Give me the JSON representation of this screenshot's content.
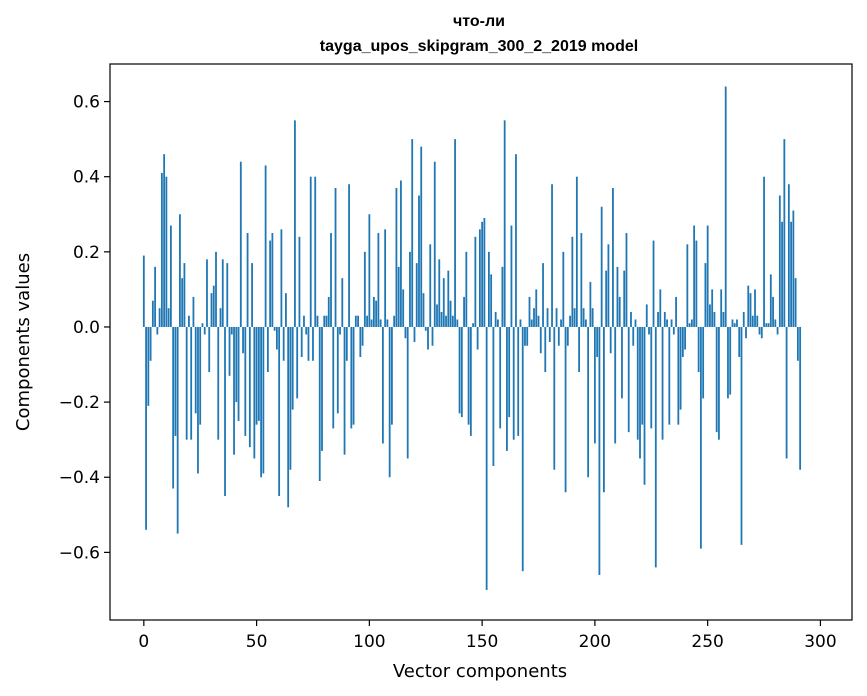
{
  "chart_data": {
    "type": "bar",
    "title_lines": [
      "что-ли",
      "tayga_upos_skipgram_300_2_2019 model"
    ],
    "xlabel": "Vector components",
    "ylabel": "Components values",
    "xlim": [
      -15,
      314
    ],
    "ylim": [
      -0.78,
      0.7
    ],
    "xticks": [
      0,
      50,
      100,
      150,
      200,
      250,
      300
    ],
    "yticks": [
      -0.6,
      -0.4,
      -0.2,
      0.0,
      0.2,
      0.4,
      0.6
    ],
    "ytick_labels": [
      "−0.6",
      "−0.4",
      "−0.2",
      "0.0",
      "0.2",
      "0.4",
      "0.6"
    ],
    "bar_color": "#1f77b4",
    "values": [
      0.19,
      -0.54,
      -0.21,
      -0.09,
      0.07,
      0.16,
      -0.02,
      0.05,
      0.41,
      0.46,
      0.4,
      0.05,
      0.27,
      -0.43,
      -0.29,
      -0.55,
      0.3,
      0.13,
      0.17,
      -0.3,
      0.03,
      -0.3,
      0.08,
      -0.23,
      -0.39,
      -0.26,
      0.01,
      -0.02,
      0.18,
      -0.12,
      0.09,
      0.11,
      0.2,
      -0.3,
      0.05,
      0.18,
      -0.45,
      0.17,
      -0.13,
      -0.02,
      -0.34,
      -0.2,
      -0.25,
      0.44,
      -0.07,
      -0.29,
      0.25,
      -0.32,
      0.17,
      -0.35,
      -0.26,
      -0.25,
      -0.4,
      -0.39,
      0.43,
      -0.12,
      0.23,
      0.25,
      -0.01,
      -0.06,
      -0.45,
      0.26,
      -0.09,
      0.09,
      -0.48,
      -0.38,
      -0.22,
      0.55,
      -0.19,
      0.24,
      -0.08,
      0.03,
      -0.02,
      -0.09,
      0.4,
      -0.09,
      0.4,
      0.03,
      -0.41,
      -0.33,
      0.03,
      0.03,
      0.08,
      0.25,
      -0.27,
      0.37,
      -0.23,
      -0.02,
      0.13,
      -0.34,
      -0.09,
      0.38,
      -0.27,
      -0.26,
      0.03,
      0.03,
      -0.08,
      -0.05,
      0.2,
      0.03,
      0.3,
      0.02,
      0.08,
      0.07,
      0.25,
      0.02,
      -0.31,
      0.26,
      0.02,
      -0.4,
      -0.26,
      0.03,
      0.37,
      0.16,
      0.39,
      0.1,
      -0.03,
      -0.35,
      0.2,
      0.5,
      -0.04,
      0.17,
      0.35,
      0.48,
      0.09,
      -0.01,
      -0.06,
      0.22,
      -0.05,
      0.44,
      0.06,
      0.18,
      0.04,
      0.13,
      0.03,
      0.15,
      0.07,
      0.03,
      0.5,
      0.02,
      -0.23,
      -0.24,
      0.08,
      0.2,
      -0.26,
      -0.29,
      0.01,
      0.24,
      -0.06,
      0.26,
      0.28,
      0.29,
      -0.7,
      0.2,
      0.14,
      -0.37,
      0.04,
      0.02,
      -0.27,
      0.16,
      0.55,
      -0.33,
      -0.24,
      0.27,
      -0.3,
      0.46,
      -0.29,
      0.02,
      -0.65,
      -0.05,
      -0.05,
      0.08,
      0.02,
      0.05,
      0.1,
      0.03,
      -0.07,
      0.17,
      -0.12,
      0.05,
      -0.04,
      0.38,
      -0.38,
      0.05,
      -0.05,
      0.02,
      0.2,
      -0.44,
      -0.05,
      0.03,
      0.24,
      0.05,
      0.4,
      -0.12,
      0.25,
      0.05,
      0.02,
      -0.4,
      0.12,
      0.05,
      -0.31,
      -0.08,
      -0.66,
      0.32,
      -0.44,
      0.15,
      0.22,
      -0.07,
      0.37,
      -0.31,
      0.16,
      0.08,
      -0.19,
      0.15,
      0.25,
      -0.28,
      0.04,
      -0.05,
      0.02,
      -0.3,
      -0.35,
      -0.26,
      -0.42,
      0.06,
      -0.02,
      -0.27,
      0.23,
      -0.64,
      0.04,
      0.1,
      -0.3,
      0.04,
      0.02,
      -0.26,
      0.02,
      -0.02,
      0.08,
      -0.26,
      -0.22,
      -0.08,
      -0.06,
      0.22,
      0.01,
      0.02,
      0.27,
      0.23,
      -0.12,
      -0.59,
      -0.19,
      0.17,
      0.27,
      0.06,
      0.1,
      0.04,
      -0.28,
      -0.3,
      0.1,
      0.04,
      0.64,
      -0.19,
      -0.18,
      0.02,
      0.01,
      0.02,
      -0.08,
      -0.58,
      0.04,
      -0.03,
      0.11,
      0.09,
      0.03,
      0.1,
      0.03,
      -0.02,
      -0.03,
      0.4,
      0.01,
      0.01,
      0.14,
      0.08,
      0.02,
      -0.02,
      0.35,
      0.28,
      0.5,
      -0.35,
      0.38,
      0.28,
      0.31,
      0.13,
      -0.09,
      -0.38
    ]
  }
}
